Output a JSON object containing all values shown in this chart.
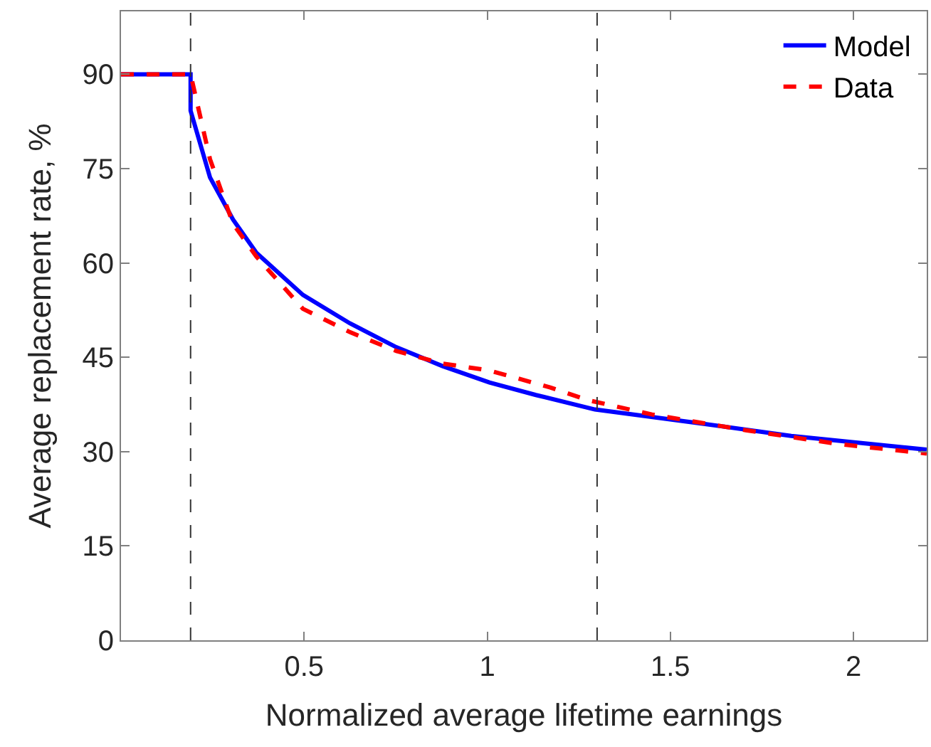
{
  "chart_data": {
    "type": "line",
    "xlabel": "Normalized average lifetime earnings",
    "ylabel": "Average replacement rate, %",
    "xlim": [
      0,
      2.2
    ],
    "xticks": [
      0.5,
      1,
      1.5,
      2
    ],
    "ylim": [
      0,
      100
    ],
    "yticks": [
      0,
      15,
      30,
      45,
      60,
      75,
      90
    ],
    "legend": "top right",
    "marker": "none",
    "series": [
      {
        "name": "Model",
        "color": "#0000ff",
        "line_style": "solid",
        "x": [
          0,
          0.19,
          0.19,
          0.243,
          0.306,
          0.37,
          0.497,
          0.625,
          0.752,
          0.878,
          1.006,
          1.133,
          1.294,
          1.58,
          1.83,
          2.2
        ],
        "values": [
          90,
          90,
          84.2,
          73.6,
          66.9,
          61.6,
          54.9,
          50.4,
          46.6,
          43.6,
          41.0,
          39.0,
          36.7,
          34.5,
          32.5,
          30.3
        ]
      },
      {
        "name": "Data",
        "color": "#ff0000",
        "line_style": "dashed",
        "x": [
          0,
          0.19,
          0.243,
          0.306,
          0.37,
          0.497,
          0.625,
          0.752,
          0.878,
          1.006,
          1.172,
          1.274,
          1.45,
          1.706,
          1.96,
          2.2
        ],
        "values": [
          90,
          90,
          76.5,
          66.2,
          61.0,
          52.7,
          49.0,
          46.0,
          44.0,
          42.9,
          40.2,
          38.2,
          35.9,
          33.4,
          31.2,
          29.7
        ]
      }
    ],
    "ref_lines": [
      {
        "axis": "x",
        "value": 0.19,
        "color": "#333333",
        "line_style": "dashed"
      },
      {
        "axis": "x",
        "value": 1.3,
        "color": "#333333",
        "line_style": "dashed"
      }
    ]
  }
}
